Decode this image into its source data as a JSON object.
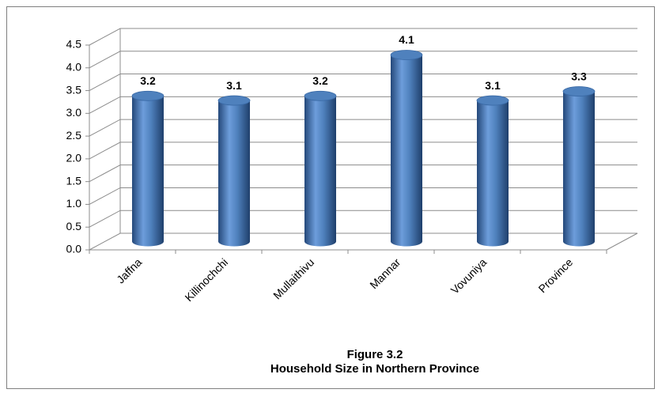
{
  "chart_data": {
    "type": "bar",
    "three_d": true,
    "title": "Figure 3.2",
    "subtitle": "Household Size in Northern Province",
    "categories": [
      "Jaffna",
      "Killinochchi",
      "Mullaithivu",
      "Mannar",
      "Vovuniya",
      "Province"
    ],
    "values": [
      3.2,
      3.1,
      3.2,
      4.1,
      3.1,
      3.3
    ],
    "color": "#4f81bd",
    "ylim": [
      0,
      4.5
    ],
    "yticks": [
      {
        "value": 0,
        "label": "0.0"
      },
      0.5,
      {
        "value": 1,
        "label": "1.0"
      },
      1.5,
      {
        "value": 2,
        "label": "2.0"
      },
      2.5,
      {
        "value": 3,
        "label": "3.0"
      },
      3.5,
      {
        "value": 4,
        "label": "4.0"
      },
      4.5
    ],
    "grid": true
  }
}
